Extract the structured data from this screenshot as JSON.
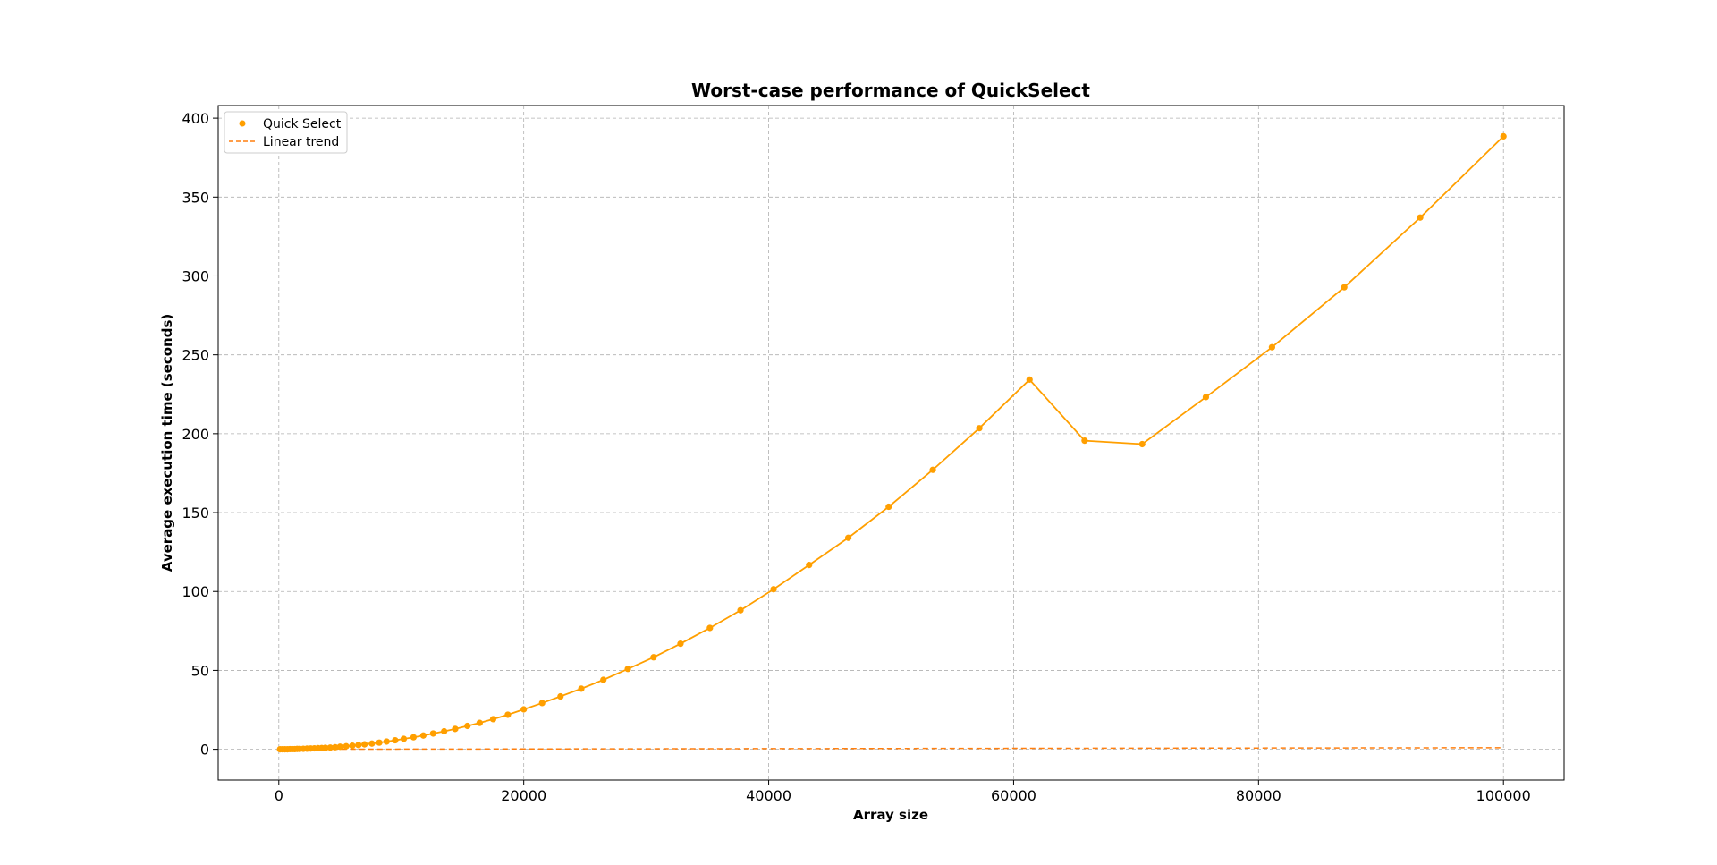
{
  "chart_data": {
    "type": "line",
    "title": "Worst-case performance of QuickSelect",
    "xlabel": "Array size",
    "ylabel": "Average execution time (seconds)",
    "xlim": [
      -4950,
      104950
    ],
    "ylim": [
      -19.5,
      408
    ],
    "xticks": [
      0,
      20000,
      40000,
      60000,
      80000,
      100000
    ],
    "yticks": [
      0,
      50,
      100,
      150,
      200,
      250,
      300,
      350,
      400
    ],
    "grid": true,
    "legend_position": "top-left",
    "colors": {
      "quick": "#ff9f00",
      "linear": "#ff7f0e",
      "axis": "#000000",
      "grid": "#b0b0b0"
    },
    "series": [
      {
        "name": "Quick Select",
        "style": "line+markers",
        "x": [
          100,
          300,
          500,
          700,
          900,
          1100,
          1300,
          1500,
          1700,
          2000,
          2300,
          2600,
          2900,
          3200,
          3500,
          3800,
          4200,
          4600,
          5000,
          5500,
          6000,
          6500,
          7000,
          7600,
          8200,
          8800,
          9500,
          10200,
          11000,
          11800,
          12600,
          13500,
          14400,
          15400,
          16400,
          17500,
          18700,
          20000,
          21500,
          23000,
          24700,
          26500,
          28500,
          30600,
          32800,
          35200,
          37700,
          40400,
          43300,
          46500,
          49800,
          53400,
          57200,
          61300,
          65800,
          70500,
          75700,
          81100,
          87000,
          93200,
          100000
        ],
        "y": [
          0.0,
          0.0,
          0.0,
          0.0,
          0.1,
          0.1,
          0.1,
          0.2,
          0.2,
          0.3,
          0.4,
          0.5,
          0.6,
          0.7,
          0.8,
          0.9,
          1.1,
          1.3,
          1.6,
          1.9,
          2.3,
          2.7,
          3.1,
          3.6,
          4.2,
          4.9,
          5.7,
          6.6,
          7.6,
          8.7,
          10.0,
          11.4,
          12.9,
          14.8,
          16.7,
          19.1,
          21.9,
          25.3,
          29.3,
          33.5,
          38.4,
          44.0,
          50.9,
          58.3,
          66.9,
          76.9,
          88.1,
          101.4,
          116.8,
          134.0,
          153.7,
          177.1,
          203.5,
          234.3,
          195.6,
          193.4,
          223.2,
          254.8,
          292.8,
          337.0,
          388.5
        ]
      },
      {
        "name": "Linear trend",
        "style": "dashed",
        "x": [
          0,
          100000
        ],
        "y": [
          0.0,
          1.0
        ]
      }
    ]
  }
}
